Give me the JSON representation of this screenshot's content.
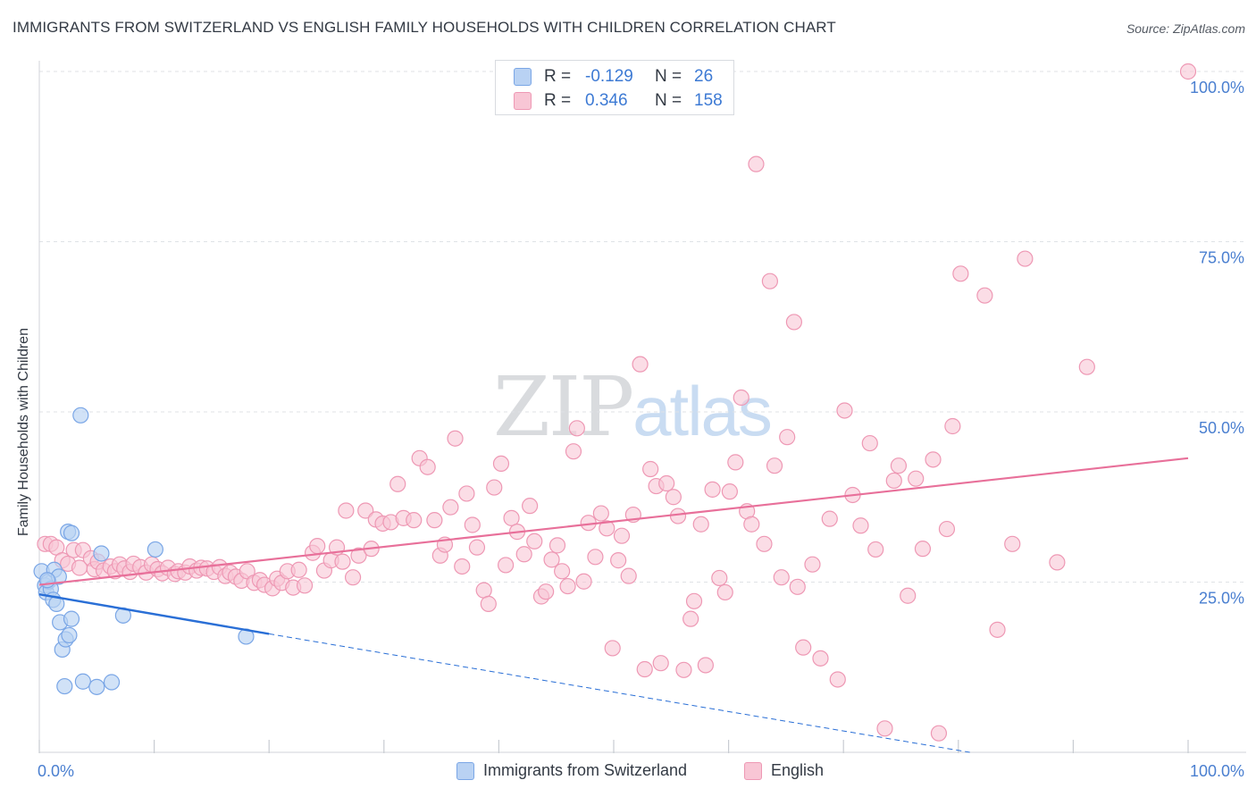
{
  "title": "IMMIGRANTS FROM SWITZERLAND VS ENGLISH FAMILY HOUSEHOLDS WITH CHILDREN CORRELATION CHART",
  "source": "Source: ZipAtlas.com",
  "watermark": {
    "zip": "ZIP",
    "atlas": "atlas"
  },
  "stats": [
    {
      "r_label": "R =",
      "r_value": "-0.129",
      "n_label": "N =",
      "n_value": "26",
      "color": "blue"
    },
    {
      "r_label": "R =",
      "r_value": "0.346",
      "n_label": "N =",
      "n_value": "158",
      "color": "pink"
    }
  ],
  "colors": {
    "blue_fill": "#b9d2f3",
    "blue_stroke": "#7aa6e6",
    "blue_line": "#2a6fd6",
    "pink_fill": "#f8c6d5",
    "pink_stroke": "#ee98b4",
    "pink_line": "#e8709a",
    "tick_label": "#4a7fd0",
    "grid": "#dfe2e6"
  },
  "chart_data": {
    "type": "scatter",
    "title": "IMMIGRANTS FROM SWITZERLAND VS ENGLISH FAMILY HOUSEHOLDS WITH CHILDREN CORRELATION CHART",
    "xlabel": "",
    "ylabel": "Family Households with Children",
    "xlim": [
      0,
      100
    ],
    "ylim": [
      0,
      100
    ],
    "x_tick_labels": [
      "0.0%",
      "100.0%"
    ],
    "y_tick_labels": [
      "25.0%",
      "50.0%",
      "75.0%",
      "100.0%"
    ],
    "y_tick_values": [
      25,
      50,
      75,
      100
    ],
    "legend": [
      "Immigrants from Switzerland",
      "English"
    ],
    "series": [
      {
        "name": "Immigrants from Switzerland",
        "color": "blue",
        "trend": {
          "x0": 0,
          "y0": 23.2,
          "x1": 20,
          "y1": 17.4,
          "dash_to_x": 81,
          "dash_to_y": 0
        },
        "points": [
          [
            0.2,
            26.6
          ],
          [
            0.5,
            24.5
          ],
          [
            0.6,
            23.5
          ],
          [
            0.8,
            25.1
          ],
          [
            1.0,
            24.0
          ],
          [
            1.2,
            22.4
          ],
          [
            1.3,
            26.8
          ],
          [
            1.5,
            21.8
          ],
          [
            1.7,
            25.8
          ],
          [
            1.8,
            19.1
          ],
          [
            2.0,
            15.1
          ],
          [
            2.2,
            9.7
          ],
          [
            2.3,
            16.6
          ],
          [
            2.5,
            32.4
          ],
          [
            2.6,
            17.2
          ],
          [
            2.8,
            32.2
          ],
          [
            2.8,
            19.6
          ],
          [
            3.6,
            49.5
          ],
          [
            3.8,
            10.4
          ],
          [
            5.0,
            9.6
          ],
          [
            5.4,
            29.2
          ],
          [
            6.3,
            10.3
          ],
          [
            7.3,
            20.1
          ],
          [
            10.1,
            29.8
          ],
          [
            18.0,
            17.0
          ],
          [
            0.7,
            25.3
          ]
        ]
      },
      {
        "name": "English",
        "color": "pink",
        "trend": {
          "x0": 0,
          "y0": 24.6,
          "x1": 100,
          "y1": 43.2
        },
        "points": [
          [
            0.5,
            30.6
          ],
          [
            1.0,
            30.6
          ],
          [
            1.5,
            30.1
          ],
          [
            2.0,
            28.2
          ],
          [
            2.5,
            27.7
          ],
          [
            3.0,
            29.7
          ],
          [
            3.5,
            27.1
          ],
          [
            3.8,
            29.7
          ],
          [
            4.5,
            28.5
          ],
          [
            4.8,
            26.9
          ],
          [
            5.1,
            28.0
          ],
          [
            5.6,
            26.7
          ],
          [
            6.2,
            27.3
          ],
          [
            6.6,
            26.6
          ],
          [
            7.0,
            27.6
          ],
          [
            7.4,
            27.0
          ],
          [
            7.9,
            26.5
          ],
          [
            8.2,
            27.7
          ],
          [
            8.8,
            27.2
          ],
          [
            9.3,
            26.4
          ],
          [
            9.8,
            27.6
          ],
          [
            10.3,
            26.9
          ],
          [
            10.7,
            26.3
          ],
          [
            11.2,
            27.1
          ],
          [
            11.8,
            26.2
          ],
          [
            12.1,
            26.6
          ],
          [
            12.7,
            26.4
          ],
          [
            13.1,
            27.3
          ],
          [
            13.7,
            26.7
          ],
          [
            14.1,
            27.1
          ],
          [
            14.6,
            27.0
          ],
          [
            15.2,
            26.5
          ],
          [
            15.7,
            27.2
          ],
          [
            16.2,
            25.9
          ],
          [
            16.6,
            26.4
          ],
          [
            17.1,
            25.8
          ],
          [
            17.6,
            25.2
          ],
          [
            18.1,
            26.6
          ],
          [
            18.7,
            24.9
          ],
          [
            19.2,
            25.3
          ],
          [
            19.6,
            24.6
          ],
          [
            20.3,
            24.1
          ],
          [
            20.7,
            25.5
          ],
          [
            21.1,
            24.9
          ],
          [
            21.6,
            26.6
          ],
          [
            22.1,
            24.2
          ],
          [
            22.6,
            26.8
          ],
          [
            23.1,
            24.5
          ],
          [
            23.8,
            29.3
          ],
          [
            24.2,
            30.3
          ],
          [
            24.8,
            26.7
          ],
          [
            25.4,
            28.2
          ],
          [
            25.9,
            30.1
          ],
          [
            26.4,
            28.0
          ],
          [
            26.7,
            35.5
          ],
          [
            27.3,
            25.7
          ],
          [
            27.8,
            28.9
          ],
          [
            28.4,
            35.5
          ],
          [
            28.9,
            29.9
          ],
          [
            29.3,
            34.2
          ],
          [
            29.9,
            33.6
          ],
          [
            30.6,
            33.8
          ],
          [
            31.2,
            39.4
          ],
          [
            31.7,
            34.4
          ],
          [
            32.6,
            34.1
          ],
          [
            33.1,
            43.2
          ],
          [
            33.8,
            41.9
          ],
          [
            34.4,
            34.1
          ],
          [
            34.9,
            28.9
          ],
          [
            35.3,
            30.5
          ],
          [
            35.8,
            36.0
          ],
          [
            36.2,
            46.1
          ],
          [
            36.8,
            27.3
          ],
          [
            37.2,
            38.0
          ],
          [
            37.7,
            33.4
          ],
          [
            38.1,
            30.1
          ],
          [
            38.7,
            23.8
          ],
          [
            39.1,
            21.8
          ],
          [
            39.6,
            38.9
          ],
          [
            40.2,
            42.4
          ],
          [
            40.6,
            27.5
          ],
          [
            41.1,
            34.4
          ],
          [
            41.6,
            32.4
          ],
          [
            42.2,
            29.1
          ],
          [
            42.7,
            36.2
          ],
          [
            43.1,
            31.0
          ],
          [
            43.7,
            22.9
          ],
          [
            44.1,
            23.6
          ],
          [
            44.6,
            28.3
          ],
          [
            45.1,
            30.4
          ],
          [
            45.5,
            26.6
          ],
          [
            46.0,
            24.4
          ],
          [
            46.5,
            44.2
          ],
          [
            46.8,
            47.6
          ],
          [
            47.4,
            25.1
          ],
          [
            47.8,
            33.7
          ],
          [
            48.4,
            28.7
          ],
          [
            48.9,
            35.1
          ],
          [
            49.4,
            32.9
          ],
          [
            49.9,
            15.3
          ],
          [
            50.4,
            28.2
          ],
          [
            50.7,
            31.8
          ],
          [
            51.3,
            25.9
          ],
          [
            51.7,
            34.9
          ],
          [
            52.3,
            57.0
          ],
          [
            52.7,
            12.2
          ],
          [
            53.2,
            41.6
          ],
          [
            53.7,
            39.1
          ],
          [
            54.1,
            13.1
          ],
          [
            54.6,
            39.5
          ],
          [
            55.2,
            37.5
          ],
          [
            55.6,
            34.7
          ],
          [
            56.1,
            12.1
          ],
          [
            56.7,
            19.6
          ],
          [
            57.0,
            22.2
          ],
          [
            57.6,
            33.5
          ],
          [
            58.0,
            12.8
          ],
          [
            58.6,
            38.6
          ],
          [
            59.2,
            25.6
          ],
          [
            59.7,
            23.5
          ],
          [
            60.1,
            38.3
          ],
          [
            60.6,
            42.6
          ],
          [
            61.1,
            52.1
          ],
          [
            61.6,
            35.4
          ],
          [
            62.0,
            33.5
          ],
          [
            62.4,
            86.4
          ],
          [
            63.1,
            30.6
          ],
          [
            63.6,
            69.2
          ],
          [
            64.0,
            42.1
          ],
          [
            64.6,
            25.7
          ],
          [
            65.1,
            46.3
          ],
          [
            65.7,
            63.2
          ],
          [
            66.0,
            24.3
          ],
          [
            66.5,
            15.4
          ],
          [
            67.3,
            27.6
          ],
          [
            68.0,
            13.8
          ],
          [
            68.8,
            34.3
          ],
          [
            69.5,
            10.7
          ],
          [
            70.1,
            50.2
          ],
          [
            70.8,
            37.8
          ],
          [
            71.5,
            33.3
          ],
          [
            72.3,
            45.4
          ],
          [
            72.8,
            29.8
          ],
          [
            73.6,
            3.5
          ],
          [
            74.4,
            39.9
          ],
          [
            74.8,
            42.1
          ],
          [
            75.6,
            23.0
          ],
          [
            76.3,
            40.2
          ],
          [
            76.9,
            29.9
          ],
          [
            77.8,
            43.0
          ],
          [
            78.3,
            2.8
          ],
          [
            79.0,
            32.8
          ],
          [
            79.5,
            47.9
          ],
          [
            80.2,
            70.3
          ],
          [
            82.3,
            67.1
          ],
          [
            83.4,
            18.0
          ],
          [
            84.7,
            30.6
          ],
          [
            85.8,
            72.5
          ],
          [
            88.6,
            27.9
          ],
          [
            91.2,
            56.6
          ],
          [
            100.0,
            100.0
          ]
        ]
      }
    ]
  },
  "legend_bottom": [
    {
      "label": "Immigrants from Switzerland",
      "color": "blue"
    },
    {
      "label": "English",
      "color": "pink"
    }
  ]
}
